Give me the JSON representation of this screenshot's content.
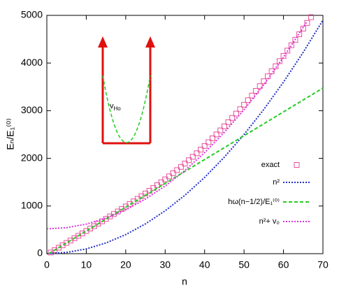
{
  "chart_data": {
    "type": "line",
    "xlabel": "n",
    "ylabel": "Eₙ/E₁⁽⁰⁾",
    "xlim": [
      0,
      70
    ],
    "xticks": [
      0,
      10,
      20,
      30,
      40,
      50,
      60,
      70
    ],
    "ylim": [
      0,
      5000
    ],
    "yticks": [
      0,
      1000,
      2000,
      3000,
      4000,
      5000
    ],
    "inset_label": {
      "text": "v",
      "sub": "Ho"
    },
    "legend": "right",
    "series": [
      {
        "name": "exact",
        "color": "#e8509a",
        "style": "squares",
        "x": [
          1,
          2,
          3,
          4,
          5,
          6,
          7,
          8,
          9,
          10,
          11,
          12,
          13,
          14,
          15,
          16,
          17,
          18,
          19,
          20,
          21,
          22,
          23,
          24,
          25,
          26,
          27,
          28,
          29,
          30,
          31,
          32,
          33,
          34,
          35,
          36,
          37,
          38,
          39,
          40,
          41,
          42,
          43,
          44,
          45,
          46,
          47,
          48,
          49,
          50,
          51,
          52,
          53,
          54,
          55,
          56,
          57,
          58,
          59,
          60,
          61,
          62,
          63,
          64,
          65,
          66,
          67
        ],
        "values": [
          25,
          75,
          125,
          175,
          225,
          275,
          325,
          375,
          425,
          476,
          526,
          577,
          628,
          679,
          730,
          781,
          833,
          885,
          937,
          990,
          1043,
          1097,
          1151,
          1206,
          1262,
          1319,
          1377,
          1436,
          1497,
          1559,
          1622,
          1687,
          1753,
          1821,
          1890,
          1961,
          2033,
          2107,
          2183,
          2260,
          2339,
          2420,
          2502,
          2586,
          2672,
          2759,
          2848,
          2939,
          3031,
          3125,
          3220,
          3317,
          3416,
          3516,
          3618,
          3721,
          3826,
          3932,
          4040,
          4150,
          4261,
          4374,
          4488,
          4604,
          4722,
          4841,
          4962
        ]
      },
      {
        "name": "n²",
        "color": "#1f2fc8",
        "style": "dotted",
        "x": [
          0,
          5,
          10,
          15,
          20,
          25,
          30,
          35,
          40,
          45,
          50,
          55,
          60,
          65,
          70
        ],
        "values": [
          0,
          25,
          100,
          225,
          400,
          625,
          900,
          1225,
          1600,
          2025,
          2500,
          3025,
          3600,
          4225,
          4900
        ]
      },
      {
        "name": "hω(n−1/2)/E₁⁽⁰⁾",
        "color": "#22cc22",
        "style": "dashed",
        "x": [
          0.5,
          70
        ],
        "values": [
          0,
          3475
        ]
      },
      {
        "name": "n²+ v₀",
        "color": "#dd33dd",
        "style": "dotted",
        "x": [
          0,
          5,
          10,
          15,
          20,
          25,
          30,
          35,
          40,
          45,
          50,
          55,
          60,
          66
        ],
        "values": [
          520,
          545,
          620,
          745,
          920,
          1145,
          1420,
          1745,
          2120,
          2545,
          3020,
          3545,
          4120,
          4876
        ]
      }
    ]
  }
}
